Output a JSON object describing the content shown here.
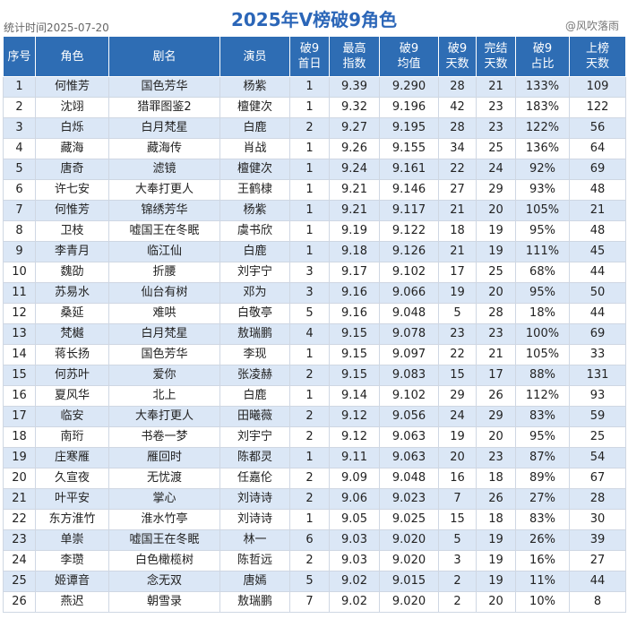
{
  "header": {
    "title": "2025年V榜破9角色",
    "stamp": "统计时间2025-07-20",
    "watermark": "@风吹落雨"
  },
  "columns": [
    {
      "line1": "序号",
      "line2": ""
    },
    {
      "line1": "角色",
      "line2": ""
    },
    {
      "line1": "剧名",
      "line2": ""
    },
    {
      "line1": "演员",
      "line2": ""
    },
    {
      "line1": "破9",
      "line2": "首日"
    },
    {
      "line1": "最高",
      "line2": "指数"
    },
    {
      "line1": "破9",
      "line2": "均值"
    },
    {
      "line1": "破9",
      "line2": "天数"
    },
    {
      "line1": "完结",
      "line2": "天数"
    },
    {
      "line1": "破9",
      "line2": "占比"
    },
    {
      "line1": "上榜",
      "line2": "天数"
    }
  ],
  "rows": [
    [
      "1",
      "何惟芳",
      "国色芳华",
      "杨紫",
      "1",
      "9.39",
      "9.290",
      "28",
      "21",
      "133%",
      "109"
    ],
    [
      "2",
      "沈翊",
      "猎罪图鉴2",
      "檀健次",
      "1",
      "9.32",
      "9.196",
      "42",
      "23",
      "183%",
      "122"
    ],
    [
      "3",
      "白烁",
      "白月梵星",
      "白鹿",
      "2",
      "9.27",
      "9.195",
      "28",
      "23",
      "122%",
      "56"
    ],
    [
      "4",
      "藏海",
      "藏海传",
      "肖战",
      "1",
      "9.26",
      "9.155",
      "34",
      "25",
      "136%",
      "64"
    ],
    [
      "5",
      "唐奇",
      "滤镜",
      "檀健次",
      "1",
      "9.24",
      "9.161",
      "22",
      "24",
      "92%",
      "69"
    ],
    [
      "6",
      "许七安",
      "大奉打更人",
      "王鹤棣",
      "1",
      "9.21",
      "9.146",
      "27",
      "29",
      "93%",
      "48"
    ],
    [
      "7",
      "何惟芳",
      "锦绣芳华",
      "杨紫",
      "1",
      "9.21",
      "9.117",
      "21",
      "20",
      "105%",
      "21"
    ],
    [
      "8",
      "卫枝",
      "嘘国王在冬眠",
      "虞书欣",
      "1",
      "9.19",
      "9.122",
      "18",
      "19",
      "95%",
      "48"
    ],
    [
      "9",
      "李青月",
      "临江仙",
      "白鹿",
      "1",
      "9.18",
      "9.126",
      "21",
      "19",
      "111%",
      "45"
    ],
    [
      "10",
      "魏劭",
      "折腰",
      "刘宇宁",
      "3",
      "9.17",
      "9.102",
      "17",
      "25",
      "68%",
      "44"
    ],
    [
      "11",
      "苏易水",
      "仙台有树",
      "邓为",
      "3",
      "9.16",
      "9.066",
      "19",
      "20",
      "95%",
      "50"
    ],
    [
      "12",
      "桑延",
      "难哄",
      "白敬亭",
      "5",
      "9.16",
      "9.048",
      "5",
      "28",
      "18%",
      "44"
    ],
    [
      "13",
      "梵樾",
      "白月梵星",
      "敖瑞鹏",
      "4",
      "9.15",
      "9.078",
      "23",
      "23",
      "100%",
      "69"
    ],
    [
      "14",
      "蒋长扬",
      "国色芳华",
      "李现",
      "1",
      "9.15",
      "9.097",
      "22",
      "21",
      "105%",
      "33"
    ],
    [
      "15",
      "何苏叶",
      "爱你",
      "张凌赫",
      "2",
      "9.15",
      "9.083",
      "15",
      "17",
      "88%",
      "131"
    ],
    [
      "16",
      "夏风华",
      "北上",
      "白鹿",
      "1",
      "9.14",
      "9.102",
      "29",
      "26",
      "112%",
      "93"
    ],
    [
      "17",
      "临安",
      "大奉打更人",
      "田曦薇",
      "2",
      "9.12",
      "9.056",
      "24",
      "29",
      "83%",
      "59"
    ],
    [
      "18",
      "南珩",
      "书卷一梦",
      "刘宇宁",
      "2",
      "9.12",
      "9.063",
      "19",
      "20",
      "95%",
      "25"
    ],
    [
      "19",
      "庄寒雁",
      "雁回时",
      "陈都灵",
      "1",
      "9.11",
      "9.063",
      "20",
      "23",
      "87%",
      "54"
    ],
    [
      "20",
      "久宣夜",
      "无忧渡",
      "任嘉伦",
      "2",
      "9.09",
      "9.048",
      "16",
      "18",
      "89%",
      "67"
    ],
    [
      "21",
      "叶平安",
      "掌心",
      "刘诗诗",
      "2",
      "9.06",
      "9.023",
      "7",
      "26",
      "27%",
      "28"
    ],
    [
      "22",
      "东方淮竹",
      "淮水竹亭",
      "刘诗诗",
      "1",
      "9.05",
      "9.025",
      "15",
      "18",
      "83%",
      "30"
    ],
    [
      "23",
      "单崇",
      "嘘国王在冬眠",
      "林一",
      "6",
      "9.03",
      "9.020",
      "5",
      "19",
      "26%",
      "39"
    ],
    [
      "24",
      "李瓒",
      "白色橄榄树",
      "陈哲远",
      "2",
      "9.03",
      "9.020",
      "3",
      "19",
      "16%",
      "27"
    ],
    [
      "25",
      "姬谭音",
      "念无双",
      "唐嫣",
      "5",
      "9.02",
      "9.015",
      "2",
      "19",
      "11%",
      "44"
    ],
    [
      "26",
      "燕迟",
      "朝雪录",
      "敖瑞鹏",
      "7",
      "9.02",
      "9.020",
      "2",
      "20",
      "10%",
      "8"
    ]
  ]
}
